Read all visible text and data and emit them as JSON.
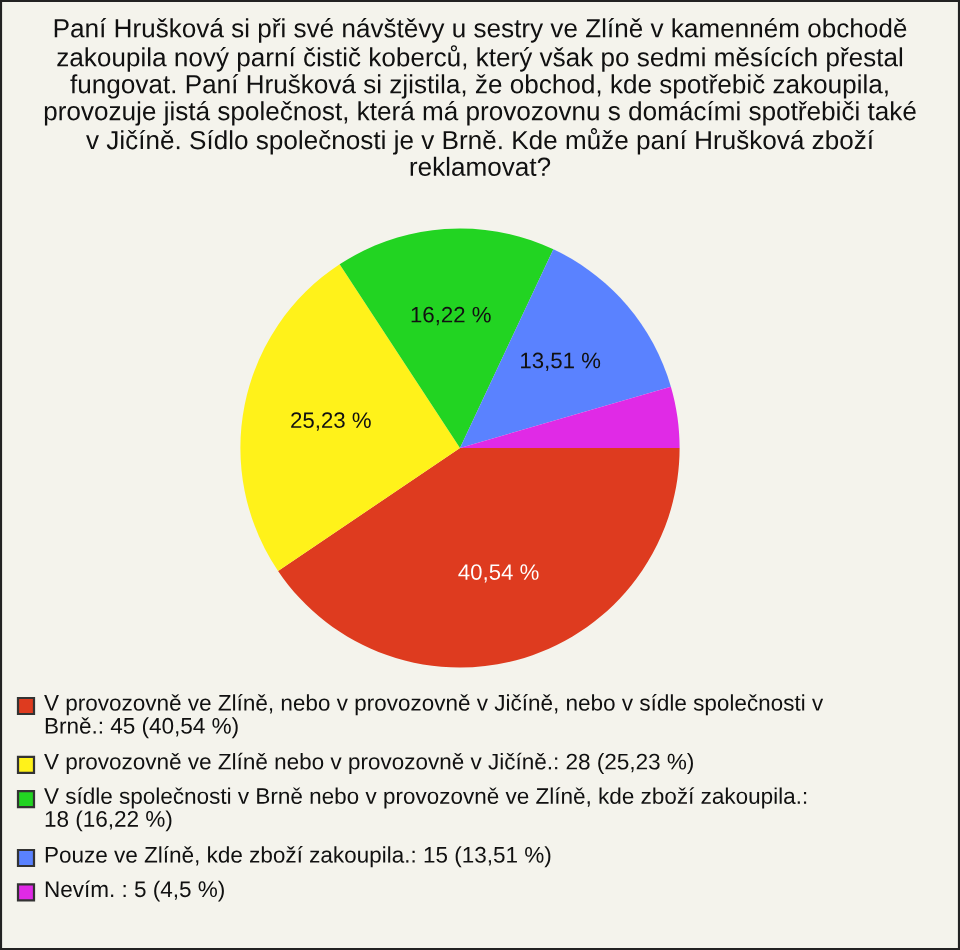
{
  "chart_data": {
    "type": "pie",
    "title": "Paní Hrušková si při své návštěvy u sestry ve Zlíně v kamenném obchodě zakoupila nový parní čistič koberců, který však po sedmi měsících přestal fungovat. Paní Hrušková si zjistila, že obchod, kde spotřebič zakoupila, provozuje jistá společnost, která má provozovnu s domácími spotřebiči také v Jičíně. Sídlo společnosti je v Brně. Kde může paní Hrušková zboží reklamovat?",
    "categories": [
      "V provozovně ve Zlíně, nebo v provozovně v Jičíně, nebo v sídle společnosti v Brně.: 45 (40,54 %)",
      "V provozovně ve Zlíně nebo v provozovně v Jičíně.: 28 (25,23 %)",
      "V sídle společnosti v Brně nebo v provozovně ve Zlíně, kde zboží zakoupila.: 18 (16,22 %)",
      "Pouze ve Zlíně, kde zboží zakoupila.: 15 (13,51 %)",
      "Nevím. : 5 (4,5 %)"
    ],
    "values": [
      40.54,
      25.23,
      16.22,
      13.51,
      4.5
    ],
    "colors": [
      "#de3b1f",
      "#fff21a",
      "#22d422",
      "#5a82ff",
      "#e02ae6"
    ],
    "value_labels": [
      "40,54 %",
      "25,23 %",
      "16,22 %",
      "13,51 %",
      null
    ],
    "legend": "bottom"
  }
}
